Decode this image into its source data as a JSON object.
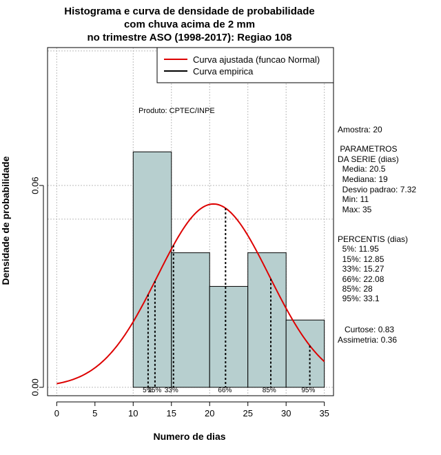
{
  "chart_data": {
    "type": "bar",
    "title_lines": [
      "Histograma e curva de densidade de probabilidade",
      "com chuva acima de 2 mm",
      "no trimestre ASO (1998-2017): Regiao 108"
    ],
    "xlabel": "Numero de dias",
    "ylabel": "Densidade de probabilidade",
    "xlim": [
      -1.2,
      36.2
    ],
    "ylim": [
      -0.0025,
      0.101
    ],
    "x_ticks": [
      0,
      5,
      10,
      15,
      20,
      25,
      30,
      35
    ],
    "y_ticks": [
      0.0,
      0.06
    ],
    "y_tick_labels": [
      "0.00",
      "0.06"
    ],
    "grid_x": [
      0,
      10,
      15,
      20,
      25,
      30,
      35
    ],
    "grid_y": [
      0.0,
      0.05,
      0.06,
      0.1
    ],
    "bins": [
      {
        "start": 10,
        "end": 15,
        "density": 0.07
      },
      {
        "start": 15,
        "end": 20,
        "density": 0.04
      },
      {
        "start": 20,
        "end": 25,
        "density": 0.03
      },
      {
        "start": 25,
        "end": 30,
        "density": 0.04
      },
      {
        "start": 30,
        "end": 35,
        "density": 0.02
      }
    ],
    "fitted_curve": {
      "name": "Curva ajustada (funcao Normal)",
      "mean": 20.5,
      "sd": 7.32,
      "x_range": [
        0,
        35
      ],
      "color": "#dd0000"
    },
    "empirical_curve": {
      "name": "Curva empirica",
      "color": "#000000"
    },
    "percentile_lines": [
      {
        "label": "5%",
        "x": 11.95
      },
      {
        "label": "15%",
        "x": 12.85
      },
      {
        "label": "33%",
        "x": 15.27
      },
      {
        "label": "66%",
        "x": 22.08
      },
      {
        "label": "85%",
        "x": 28
      },
      {
        "label": "95%",
        "x": 33.1
      }
    ],
    "percentile_tick_labels": [
      {
        "text": "5%",
        "x": 11.9
      },
      {
        "text": "15%",
        "x": 12.8
      },
      {
        "text": "33%",
        "x": 15
      },
      {
        "text": "66%",
        "x": 22
      },
      {
        "text": "85%",
        "x": 27.8
      },
      {
        "text": "95%",
        "x": 32.9
      }
    ],
    "annotation": "Produto: CPTEC/INPE",
    "bar_color": "#b7cfcf",
    "legend_position": "top-right"
  },
  "stats_panel": [
    "Amostra: 20",
    " PARAMETROS",
    "DA SERIE (dias)",
    "  Media: 20.5",
    "  Mediana: 19",
    "  Desvio padrao: 7.32",
    "  Min: 11",
    "  Max: 35",
    "PERCENTIS (dias)",
    "  5%: 11.95",
    "  15%: 12.85",
    "  33%: 15.27",
    "  66%: 22.08",
    "  85%: 28",
    "  95%: 33.1",
    "   Curtose: 0.83",
    "Assimetria: 0.36"
  ]
}
